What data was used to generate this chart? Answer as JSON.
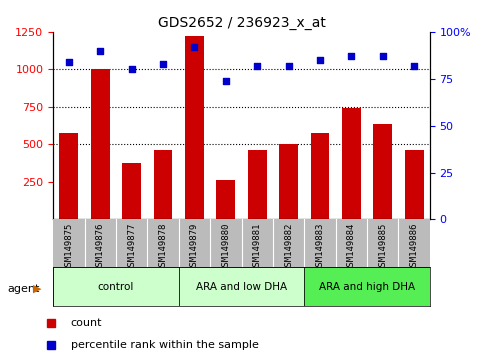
{
  "title": "GDS2652 / 236923_x_at",
  "categories": [
    "GSM149875",
    "GSM149876",
    "GSM149877",
    "GSM149878",
    "GSM149879",
    "GSM149880",
    "GSM149881",
    "GSM149882",
    "GSM149883",
    "GSM149884",
    "GSM149885",
    "GSM149886"
  ],
  "bar_values": [
    575,
    1000,
    375,
    465,
    1225,
    265,
    460,
    500,
    575,
    740,
    635,
    465
  ],
  "scatter_values": [
    84,
    90,
    80,
    83,
    92,
    74,
    82,
    82,
    85,
    87,
    87,
    82
  ],
  "ylim_left": [
    0,
    1250
  ],
  "ylim_right": [
    0,
    100
  ],
  "yticks_left": [
    250,
    500,
    750,
    1000,
    1250
  ],
  "yticks_right": [
    0,
    25,
    50,
    75,
    100
  ],
  "ytick_labels_right": [
    "0",
    "25",
    "50",
    "75",
    "100%"
  ],
  "bar_color": "#cc0000",
  "scatter_color": "#0000cc",
  "groups": [
    {
      "label": "control",
      "start": 0,
      "end": 3,
      "color": "#ccffcc"
    },
    {
      "label": "ARA and low DHA",
      "start": 4,
      "end": 7,
      "color": "#ccffcc"
    },
    {
      "label": "ARA and high DHA",
      "start": 8,
      "end": 11,
      "color": "#55ee55"
    }
  ],
  "legend_bar_label": "count",
  "legend_scatter_label": "percentile rank within the sample"
}
